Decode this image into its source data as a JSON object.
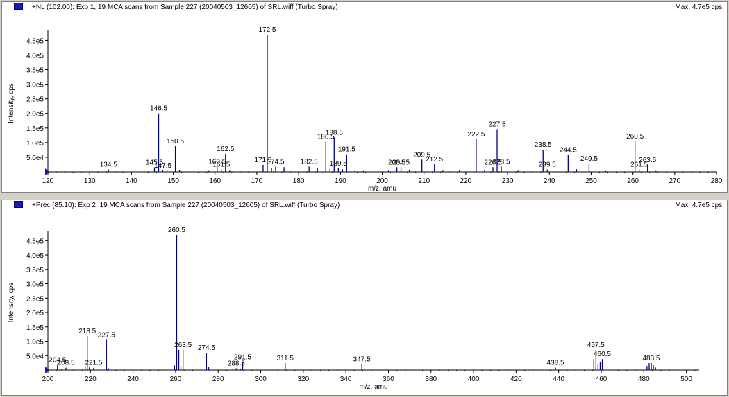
{
  "panels": [
    {
      "title": "+NL (102.00): Exp 1, 19 MCA scans from Sample 227 (20040503_12605) of SRL.wiff (Turbo Spray)",
      "max_label": "Max. 4.7e5 cps."
    },
    {
      "title": "+Prec (85.10): Exp 2, 19 MCA scans from Sample 227 (20040503_12605) of SRL.wiff (Turbo Spray)",
      "max_label": "Max. 4.7e5 cps."
    }
  ],
  "colors": {
    "peak": "#00007f",
    "legend": "#1c1cb4",
    "background": "#d4d0c8"
  },
  "chart_data": [
    {
      "type": "bar",
      "xlabel": "m/z, amu",
      "ylabel": "Intensity, cps",
      "xlim": [
        120,
        280
      ],
      "ylim": [
        0,
        470000
      ],
      "xticks": [
        120,
        130,
        140,
        150,
        160,
        170,
        180,
        190,
        200,
        210,
        220,
        230,
        240,
        250,
        260,
        270,
        280
      ],
      "yticks": [
        {
          "value": 50000,
          "label": "5.0e4"
        },
        {
          "value": 100000,
          "label": "1.0e5"
        },
        {
          "value": 150000,
          "label": "1.5e5"
        },
        {
          "value": 200000,
          "label": "2.0e5"
        },
        {
          "value": 250000,
          "label": "2.5e5"
        },
        {
          "value": 300000,
          "label": "3.0e5"
        },
        {
          "value": 350000,
          "label": "3.5e5"
        },
        {
          "value": 400000,
          "label": "4.0e5"
        },
        {
          "value": 450000,
          "label": "4.5e5"
        }
      ],
      "peaks": [
        {
          "mz": 134.5,
          "intensity": 8000,
          "label": "134.5"
        },
        {
          "mz": 145.5,
          "intensity": 15000,
          "label": "145.5"
        },
        {
          "mz": 146.5,
          "intensity": 200000,
          "label": "146.5"
        },
        {
          "mz": 147.5,
          "intensity": 5000,
          "label": "147.5"
        },
        {
          "mz": 150.5,
          "intensity": 88000,
          "label": "150.5"
        },
        {
          "mz": 160.5,
          "intensity": 18000,
          "label": "160.5"
        },
        {
          "mz": 161.5,
          "intensity": 8000,
          "label": "161.5"
        },
        {
          "mz": 162.5,
          "intensity": 62000,
          "label": "162.5"
        },
        {
          "mz": 171.5,
          "intensity": 24000,
          "label": "171.5"
        },
        {
          "mz": 172.5,
          "intensity": 470000,
          "label": "172.5"
        },
        {
          "mz": 174.5,
          "intensity": 18000,
          "label": "174.5"
        },
        {
          "mz": 182.5,
          "intensity": 18000,
          "label": "182.5"
        },
        {
          "mz": 186.5,
          "intensity": 103000,
          "label": "186.5"
        },
        {
          "mz": 188.5,
          "intensity": 118000,
          "label": "188.5"
        },
        {
          "mz": 189.5,
          "intensity": 12000,
          "label": "189.5"
        },
        {
          "mz": 191.5,
          "intensity": 60000,
          "label": "191.5"
        },
        {
          "mz": 203.5,
          "intensity": 16000,
          "label": "203.5"
        },
        {
          "mz": 204.5,
          "intensity": 16000,
          "label": "204.5"
        },
        {
          "mz": 209.5,
          "intensity": 42000,
          "label": "209.5"
        },
        {
          "mz": 212.5,
          "intensity": 26000,
          "label": "212.5"
        },
        {
          "mz": 222.5,
          "intensity": 112000,
          "label": "222.5"
        },
        {
          "mz": 226.5,
          "intensity": 16000,
          "label": "226.5"
        },
        {
          "mz": 227.5,
          "intensity": 146000,
          "label": "227.5"
        },
        {
          "mz": 228.5,
          "intensity": 18000,
          "label": "228.5"
        },
        {
          "mz": 238.5,
          "intensity": 76000,
          "label": "238.5"
        },
        {
          "mz": 239.5,
          "intensity": 8000,
          "label": "239.5"
        },
        {
          "mz": 244.5,
          "intensity": 58000,
          "label": "244.5"
        },
        {
          "mz": 249.5,
          "intensity": 28000,
          "label": "249.5"
        },
        {
          "mz": 260.5,
          "intensity": 105000,
          "label": "260.5"
        },
        {
          "mz": 261.5,
          "intensity": 8000,
          "label": "261.5"
        },
        {
          "mz": 263.5,
          "intensity": 24000,
          "label": "263.5"
        },
        {
          "mz": 136.5,
          "intensity": 3000
        },
        {
          "mz": 148.5,
          "intensity": 4000
        },
        {
          "mz": 151.5,
          "intensity": 5000
        },
        {
          "mz": 158.5,
          "intensity": 3000
        },
        {
          "mz": 163.5,
          "intensity": 4000
        },
        {
          "mz": 173.5,
          "intensity": 14000
        },
        {
          "mz": 176.5,
          "intensity": 16000
        },
        {
          "mz": 184.5,
          "intensity": 13000
        },
        {
          "mz": 187.5,
          "intensity": 10000
        },
        {
          "mz": 190.5,
          "intensity": 9000
        },
        {
          "mz": 193.5,
          "intensity": 4000
        },
        {
          "mz": 195.5,
          "intensity": 3000
        },
        {
          "mz": 201.5,
          "intensity": 4000
        },
        {
          "mz": 206.5,
          "intensity": 5000
        },
        {
          "mz": 214.5,
          "intensity": 4000
        },
        {
          "mz": 218.5,
          "intensity": 5000
        },
        {
          "mz": 224.5,
          "intensity": 6000
        },
        {
          "mz": 232.5,
          "intensity": 4000
        },
        {
          "mz": 246.5,
          "intensity": 9000
        },
        {
          "mz": 253.5,
          "intensity": 3000
        },
        {
          "mz": 265.5,
          "intensity": 3000
        }
      ]
    },
    {
      "type": "bar",
      "xlabel": "m/z, amu",
      "ylabel": "Intensity, cps",
      "xlim": [
        200,
        506
      ],
      "ylim": [
        0,
        470000
      ],
      "xticks": [
        200,
        220,
        240,
        260,
        280,
        300,
        320,
        340,
        360,
        380,
        400,
        420,
        440,
        460,
        480,
        500
      ],
      "yticks": [
        {
          "value": 50000,
          "label": "5.0e4"
        },
        {
          "value": 100000,
          "label": "1.0e5"
        },
        {
          "value": 150000,
          "label": "1.5e5"
        },
        {
          "value": 200000,
          "label": "2.0e5"
        },
        {
          "value": 250000,
          "label": "2.5e5"
        },
        {
          "value": 300000,
          "label": "3.0e5"
        },
        {
          "value": 350000,
          "label": "3.5e5"
        },
        {
          "value": 400000,
          "label": "4.0e5"
        },
        {
          "value": 450000,
          "label": "4.5e5"
        }
      ],
      "peaks": [
        {
          "mz": 204.5,
          "intensity": 18000,
          "label": "204.5"
        },
        {
          "mz": 208.5,
          "intensity": 8000,
          "label": "208.5"
        },
        {
          "mz": 218.5,
          "intensity": 118000,
          "label": "218.5"
        },
        {
          "mz": 221.5,
          "intensity": 8000,
          "label": "221.5"
        },
        {
          "mz": 227.5,
          "intensity": 105000,
          "label": "227.5"
        },
        {
          "mz": 260.5,
          "intensity": 470000,
          "label": "260.5"
        },
        {
          "mz": 263.5,
          "intensity": 70000,
          "label": "263.5"
        },
        {
          "mz": 274.5,
          "intensity": 60000,
          "label": "274.5"
        },
        {
          "mz": 288.5,
          "intensity": 6000,
          "label": "288.5"
        },
        {
          "mz": 291.5,
          "intensity": 28000,
          "label": "291.5"
        },
        {
          "mz": 311.5,
          "intensity": 24000,
          "label": "311.5"
        },
        {
          "mz": 347.5,
          "intensity": 20000,
          "label": "347.5"
        },
        {
          "mz": 438.5,
          "intensity": 8000,
          "label": "438.5"
        },
        {
          "mz": 457.5,
          "intensity": 70000,
          "label": "457.5"
        },
        {
          "mz": 460.5,
          "intensity": 38000,
          "label": "460.5"
        },
        {
          "mz": 483.5,
          "intensity": 24000,
          "label": "483.5"
        },
        {
          "mz": 206.5,
          "intensity": 4000
        },
        {
          "mz": 217.5,
          "intensity": 13000
        },
        {
          "mz": 219.5,
          "intensity": 9000
        },
        {
          "mz": 228.5,
          "intensity": 6000
        },
        {
          "mz": 259.5,
          "intensity": 16000
        },
        {
          "mz": 261.5,
          "intensity": 70000
        },
        {
          "mz": 262.5,
          "intensity": 13000
        },
        {
          "mz": 275.5,
          "intensity": 10000
        },
        {
          "mz": 290.5,
          "intensity": 5000
        },
        {
          "mz": 456.5,
          "intensity": 38000
        },
        {
          "mz": 458.5,
          "intensity": 20000
        },
        {
          "mz": 459.5,
          "intensity": 28000
        },
        {
          "mz": 481.5,
          "intensity": 14000
        },
        {
          "mz": 482.5,
          "intensity": 24000
        },
        {
          "mz": 484.5,
          "intensity": 16000
        },
        {
          "mz": 485.5,
          "intensity": 9000
        }
      ]
    }
  ]
}
